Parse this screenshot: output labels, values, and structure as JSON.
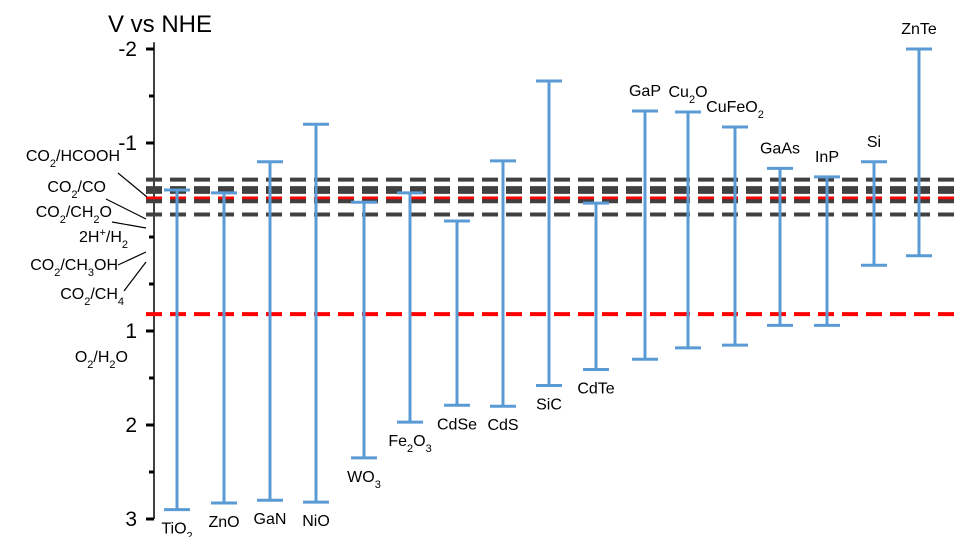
{
  "chart_data": {
    "type": "range-bar",
    "title": "V vs NHE",
    "y_axis": {
      "label": "V vs NHE",
      "range": [
        -2.2,
        3.0
      ],
      "inverted": true,
      "major_ticks": [
        -2,
        -1,
        1,
        2,
        3
      ],
      "major_tick_labels": [
        "-2",
        "-1",
        "1",
        "2",
        "3"
      ],
      "minor_ticks": [
        -1.5,
        -0.5,
        0,
        0.5,
        1.5,
        2.5
      ]
    },
    "colors": {
      "bars": "#5b9bd5",
      "co2_lines": "#404040",
      "water_lines": "#ff0000",
      "axis": "#000000"
    },
    "materials": [
      {
        "name": "TiO",
        "sub": "2",
        "cb": -0.5,
        "vb": 2.9,
        "label_pos": "bottom"
      },
      {
        "name": "ZnO",
        "sub": "",
        "cb": -0.47,
        "vb": 2.83,
        "label_pos": "bottom"
      },
      {
        "name": "GaN",
        "sub": "",
        "cb": -0.8,
        "vb": 2.8,
        "label_pos": "bottom"
      },
      {
        "name": "NiO",
        "sub": "",
        "cb": -1.2,
        "vb": 2.82,
        "label_pos": "bottom"
      },
      {
        "name": "WO",
        "sub": "3",
        "cb": -0.37,
        "vb": 2.35,
        "label_pos": "bottom"
      },
      {
        "name": "Fe",
        "sub": "2",
        "name2": "O",
        "sub2": "3",
        "cb": -0.47,
        "vb": 1.97,
        "label_pos": "bottom"
      },
      {
        "name": "CdSe",
        "sub": "",
        "cb": -0.17,
        "vb": 1.79,
        "label_pos": "bottom"
      },
      {
        "name": "CdS",
        "sub": "",
        "cb": -0.81,
        "vb": 1.8,
        "label_pos": "bottom"
      },
      {
        "name": "SiC",
        "sub": "",
        "cb": -1.66,
        "vb": 1.58,
        "label_pos": "bottom"
      },
      {
        "name": "CdTe",
        "sub": "",
        "cb": -0.36,
        "vb": 1.41,
        "label_pos": "bottom"
      },
      {
        "name": "GaP",
        "sub": "",
        "cb": -1.34,
        "vb": 1.3,
        "label_pos": "top"
      },
      {
        "name": "Cu",
        "sub": "2",
        "name2": "O",
        "sub2": "",
        "cb": -1.33,
        "vb": 1.18,
        "label_pos": "top"
      },
      {
        "name": "CuFeO",
        "sub": "2",
        "cb": -1.17,
        "vb": 1.15,
        "label_pos": "top"
      },
      {
        "name": "GaAs",
        "sub": "",
        "cb": -0.73,
        "vb": 0.94,
        "label_pos": "top"
      },
      {
        "name": "InP",
        "sub": "",
        "cb": -0.64,
        "vb": 0.94,
        "label_pos": "top"
      },
      {
        "name": "Si",
        "sub": "",
        "cb": -0.8,
        "vb": 0.3,
        "label_pos": "top"
      },
      {
        "name": "ZnTe",
        "sub": "",
        "cb": -2.0,
        "vb": 0.2,
        "label_pos": "top"
      }
    ],
    "redox_couples": [
      {
        "parts": [
          [
            "CO",
            ""
          ],
          [
            "2",
            "sub"
          ],
          [
            "/HCOOH",
            ""
          ]
        ],
        "potential": -0.61,
        "color": "#404040"
      },
      {
        "parts": [
          [
            "CO",
            ""
          ],
          [
            "2",
            "sub"
          ],
          [
            "/CO",
            ""
          ]
        ],
        "potential": -0.52,
        "color": "#404040"
      },
      {
        "parts": [
          [
            "CO",
            ""
          ],
          [
            "2",
            "sub"
          ],
          [
            "/CH",
            ""
          ],
          [
            "2",
            "sub"
          ],
          [
            "O",
            ""
          ]
        ],
        "potential": -0.48,
        "color": "#404040"
      },
      {
        "parts": [
          [
            "2H",
            ""
          ],
          [
            "+",
            "sup"
          ],
          [
            "/H",
            ""
          ],
          [
            "2",
            "sub"
          ]
        ],
        "potential": -0.41,
        "color": "#ff0000"
      },
      {
        "parts": [
          [
            "CO",
            ""
          ],
          [
            "2",
            "sub"
          ],
          [
            "/CH",
            ""
          ],
          [
            "3",
            "sub"
          ],
          [
            "OH",
            ""
          ]
        ],
        "potential": -0.38,
        "color": "#404040"
      },
      {
        "parts": [
          [
            "CO",
            ""
          ],
          [
            "2",
            "sub"
          ],
          [
            "/CH",
            ""
          ],
          [
            "4",
            "sub"
          ]
        ],
        "potential": -0.24,
        "color": "#404040"
      },
      {
        "parts": [
          [
            "O",
            ""
          ],
          [
            "2",
            "sub"
          ],
          [
            "/H",
            ""
          ],
          [
            "2",
            "sub"
          ],
          [
            "O",
            ""
          ]
        ],
        "potential": 0.82,
        "color": "#ff0000"
      }
    ]
  }
}
